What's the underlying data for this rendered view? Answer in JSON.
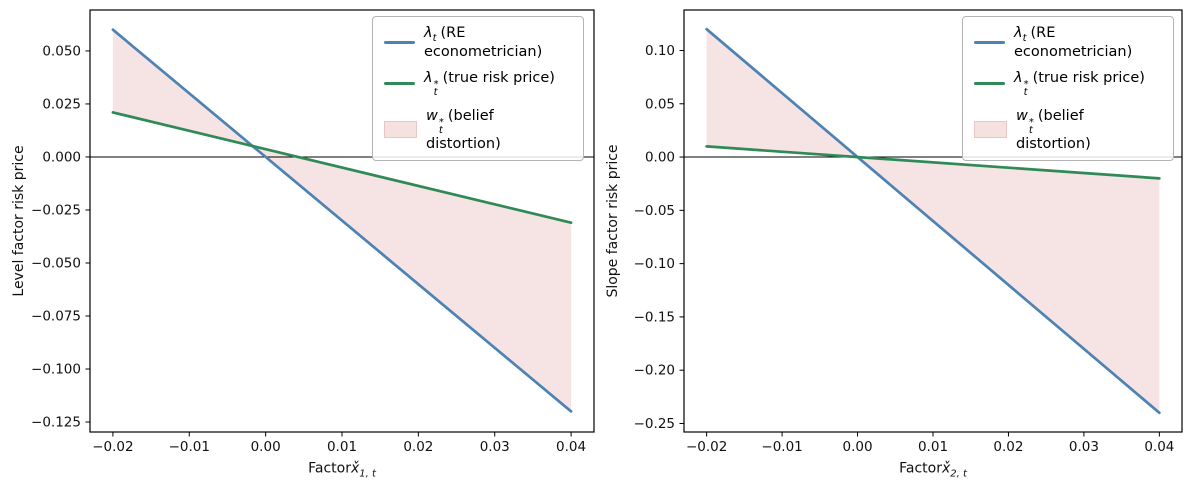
{
  "figure": {
    "background": "#ffffff",
    "frame_color": "#000000",
    "zero_line_color": "#000000"
  },
  "chart_data": [
    {
      "type": "line",
      "title": "",
      "xlabel": {
        "prefix": "Factor",
        "var": "x̌",
        "sub": "1, t"
      },
      "ylabel": "Level factor risk price",
      "xlim": [
        -0.023,
        0.043
      ],
      "ylim": [
        -0.1297,
        0.0693
      ],
      "x": [
        -0.02,
        0.04
      ],
      "series": [
        {
          "id": "lambda-re",
          "name": "λt (RE econometrician)",
          "values": [
            0.06,
            -0.12
          ],
          "color": "#4d82b4"
        },
        {
          "id": "lambda-true",
          "name": "λt* (true risk price)",
          "values": [
            0.021,
            -0.031
          ],
          "color": "#2f8a57"
        }
      ],
      "fill": {
        "id": "belief-distortion",
        "name": "wt* (belief distortion)",
        "between": [
          "lambda-re",
          "lambda-true"
        ],
        "color": "#c44e52",
        "opacity": 0.16
      },
      "zero_line": 0,
      "xticks": [
        -0.02,
        -0.01,
        0,
        0.01,
        0.02,
        0.03,
        0.04
      ],
      "xtick_labels": [
        "−0.02",
        "−0.01",
        "0.00",
        "0.01",
        "0.02",
        "0.03",
        "0.04"
      ],
      "yticks": [
        0.05,
        0.025,
        0,
        -0.025,
        -0.05,
        -0.075,
        -0.1,
        -0.125
      ],
      "ytick_labels": [
        "0.050",
        "0.025",
        "0.000",
        "−0.025",
        "−0.050",
        "−0.075",
        "−0.100",
        "−0.125"
      ],
      "legend_position": "upper right",
      "grid": false,
      "legend": [
        {
          "id": "lambda-re",
          "marker": "line",
          "color": "#4d82b4",
          "sym": "λ",
          "sub": "t",
          "sup": "",
          "label": "(RE econometrician)"
        },
        {
          "id": "lambda-true",
          "marker": "line",
          "color": "#2f8a57",
          "sym": "λ",
          "sub": "t",
          "sup": "*",
          "label": "(true risk price)"
        },
        {
          "id": "belief-distortion",
          "marker": "patch",
          "color": "#f5e1df",
          "edge": "#e7c6c3",
          "sym": "w",
          "sub": "t",
          "sup": "*",
          "label": "(belief distortion)"
        }
      ]
    },
    {
      "type": "line",
      "title": "",
      "xlabel": {
        "prefix": "Factor",
        "var": "x̌",
        "sub": "2, t"
      },
      "ylabel": "Slope factor risk price",
      "xlim": [
        -0.023,
        0.043
      ],
      "ylim": [
        -0.258,
        0.138
      ],
      "x": [
        -0.02,
        0.04
      ],
      "series": [
        {
          "id": "lambda-re",
          "name": "λt (RE econometrician)",
          "values": [
            0.12,
            -0.24
          ],
          "color": "#4d82b4"
        },
        {
          "id": "lambda-true",
          "name": "λt* (true risk price)",
          "values": [
            0.01,
            -0.02
          ],
          "color": "#2f8a57"
        }
      ],
      "fill": {
        "id": "belief-distortion",
        "name": "wt* (belief distortion)",
        "between": [
          "lambda-re",
          "lambda-true"
        ],
        "color": "#c44e52",
        "opacity": 0.16
      },
      "zero_line": 0,
      "xticks": [
        -0.02,
        -0.01,
        0,
        0.01,
        0.02,
        0.03,
        0.04
      ],
      "xtick_labels": [
        "−0.02",
        "−0.01",
        "0.00",
        "0.01",
        "0.02",
        "0.03",
        "0.04"
      ],
      "yticks": [
        0.1,
        0.05,
        0,
        -0.05,
        -0.1,
        -0.15,
        -0.2,
        -0.25
      ],
      "ytick_labels": [
        "0.10",
        "0.05",
        "0.00",
        "−0.05",
        "−0.10",
        "−0.15",
        "−0.20",
        "−0.25"
      ],
      "legend_position": "upper right",
      "grid": false,
      "legend": [
        {
          "id": "lambda-re",
          "marker": "line",
          "color": "#4d82b4",
          "sym": "λ",
          "sub": "t",
          "sup": "",
          "label": "(RE econometrician)"
        },
        {
          "id": "lambda-true",
          "marker": "line",
          "color": "#2f8a57",
          "sym": "λ",
          "sub": "t",
          "sup": "*",
          "label": "(true risk price)"
        },
        {
          "id": "belief-distortion",
          "marker": "patch",
          "color": "#f5e1df",
          "edge": "#e7c6c3",
          "sym": "w",
          "sub": "t",
          "sup": "*",
          "label": "(belief distortion)"
        }
      ]
    }
  ]
}
